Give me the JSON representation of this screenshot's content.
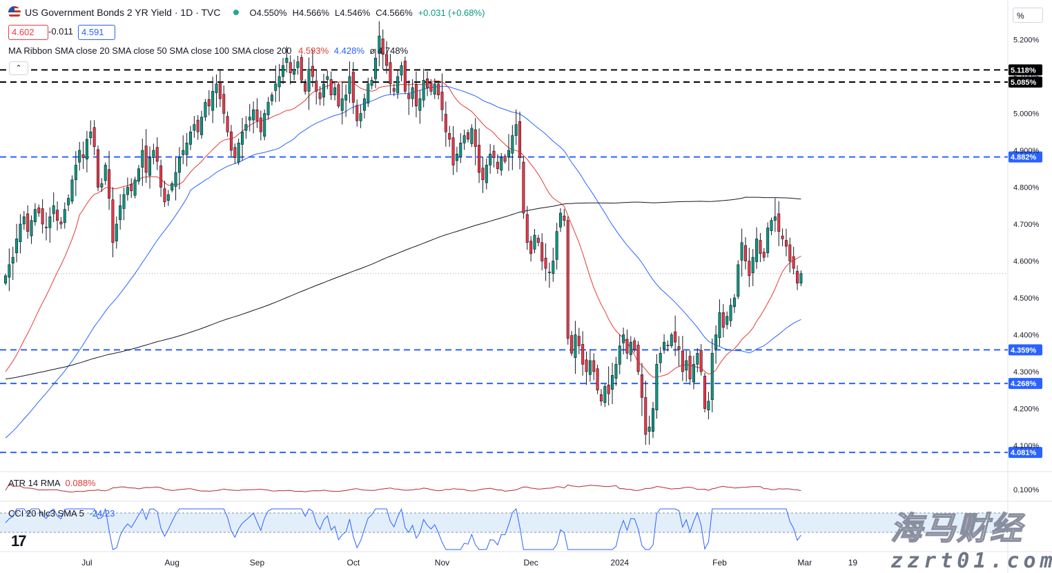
{
  "header": {
    "title": "US Government Bonds 2 YR Yield · 1D · TVC",
    "open": "O4.550%",
    "high": "H4.566%",
    "low": "L4.546%",
    "close": "C4.566%",
    "change": "+0.031 (+0.68%)"
  },
  "price_boxes": {
    "sell": "4.602",
    "spread": "-0.011",
    "buy": "4.591"
  },
  "ma_ribbon": {
    "label": "MA Ribbon SMA close 20 SMA close 50 SMA close 100 SMA close 200",
    "v20": "4.593%",
    "v50": "4.428%",
    "v_last": "ø 4.748%"
  },
  "atr": {
    "label": "ATR 14 RMA",
    "value": "0.088%",
    "axis": "0.100%"
  },
  "cci": {
    "label": "CCI 20 hlc3 SMA 5",
    "value": "-24.23"
  },
  "collapse_glyph": "⌃",
  "tv_logo": "17",
  "scale_unit": "%",
  "watermark": {
    "line1": "海马财经",
    "line2": "zzrt01.com"
  },
  "colors": {
    "up": "#089981",
    "down": "#f23645",
    "sma20": "#e53935",
    "sma50": "#2962ff",
    "sma200": "#131722",
    "level_blue": "#2962ff",
    "level_black": "#000000",
    "cci": "#2962ff"
  },
  "chart_data": {
    "type": "candlestick",
    "y_unit": "%",
    "ylim": [
      4.05,
      5.28
    ],
    "y_ticks": [
      4.1,
      4.2,
      4.3,
      4.4,
      4.5,
      4.6,
      4.7,
      4.8,
      4.9,
      5.0,
      5.1,
      5.2
    ],
    "y_tick_labels": [
      "4.100%",
      "4.200%",
      "4.300%",
      "4.400%",
      "4.500%",
      "4.600%",
      "4.700%",
      "4.800%",
      "4.900%",
      "5.000%",
      "5.100%",
      "5.200%"
    ],
    "x_labels": [
      {
        "label": "Jul",
        "bar": 22
      },
      {
        "label": "Aug",
        "bar": 45
      },
      {
        "label": "Sep",
        "bar": 68
      },
      {
        "label": "Oct",
        "bar": 94
      },
      {
        "label": "Nov",
        "bar": 118
      },
      {
        "label": "Dec",
        "bar": 142
      },
      {
        "label": "2024",
        "bar": 166
      },
      {
        "label": "Feb",
        "bar": 193
      },
      {
        "label": "Mar",
        "bar": 216
      },
      {
        "label": "19",
        "bar": 229
      }
    ],
    "levels": [
      {
        "value": 5.118,
        "label": "5.118%",
        "style": "black"
      },
      {
        "value": 5.085,
        "label": "5.085%",
        "style": "black"
      },
      {
        "value": 4.882,
        "label": "4.882%",
        "style": "blue"
      },
      {
        "value": 4.359,
        "label": "4.359%",
        "style": "blue"
      },
      {
        "value": 4.268,
        "label": "4.268%",
        "style": "blue"
      },
      {
        "value": 4.081,
        "label": "4.081%",
        "style": "blue"
      }
    ],
    "last_price": 4.566,
    "closes": [
      4.56,
      4.59,
      4.61,
      4.66,
      4.7,
      4.72,
      4.68,
      4.71,
      4.74,
      4.73,
      4.7,
      4.69,
      4.72,
      4.75,
      4.71,
      4.7,
      4.74,
      4.77,
      4.82,
      4.86,
      4.9,
      4.88,
      4.93,
      4.95,
      4.91,
      4.8,
      4.81,
      4.86,
      4.77,
      4.65,
      4.7,
      4.75,
      4.78,
      4.8,
      4.79,
      4.82,
      4.85,
      4.9,
      4.84,
      4.88,
      4.9,
      4.87,
      4.8,
      4.76,
      4.78,
      4.81,
      4.84,
      4.88,
      4.9,
      4.92,
      4.95,
      4.97,
      4.95,
      4.99,
      5.03,
      5.02,
      5.06,
      5.08,
      5.04,
      5.0,
      4.95,
      4.9,
      4.88,
      4.92,
      4.95,
      4.97,
      4.99,
      5.01,
      4.98,
      4.95,
      5.0,
      5.03,
      5.05,
      5.08,
      5.1,
      5.13,
      5.15,
      5.11,
      5.12,
      5.14,
      5.09,
      5.06,
      5.12,
      5.1,
      5.06,
      5.04,
      5.08,
      5.1,
      5.05,
      5.07,
      5.02,
      5.04,
      5.05,
      5.1,
      5.03,
      4.98,
      5.0,
      5.04,
      5.08,
      5.09,
      5.15,
      5.21,
      5.16,
      5.13,
      5.08,
      5.06,
      5.1,
      5.13,
      5.06,
      5.04,
      5.07,
      5.02,
      5.04,
      5.09,
      5.07,
      5.06,
      5.08,
      5.05,
      5.01,
      4.95,
      4.93,
      4.86,
      4.89,
      4.92,
      4.94,
      4.93,
      4.96,
      4.91,
      4.84,
      4.82,
      4.86,
      4.89,
      4.88,
      4.85,
      4.88,
      4.87,
      4.9,
      4.94,
      4.97,
      4.88,
      4.73,
      4.65,
      4.62,
      4.67,
      4.65,
      4.6,
      4.58,
      4.57,
      4.6,
      4.68,
      4.73,
      4.71,
      4.39,
      4.35,
      4.4,
      4.37,
      4.32,
      4.3,
      4.33,
      4.3,
      4.25,
      4.22,
      4.26,
      4.24,
      4.29,
      4.32,
      4.37,
      4.4,
      4.35,
      4.38,
      4.36,
      4.3,
      4.23,
      4.13,
      4.15,
      4.2,
      4.32,
      4.35,
      4.38,
      4.37,
      4.4,
      4.38,
      4.36,
      4.3,
      4.33,
      4.28,
      4.32,
      4.35,
      4.3,
      4.2,
      4.22,
      4.35,
      4.4,
      4.46,
      4.42,
      4.45,
      4.48,
      4.5,
      4.59,
      4.65,
      4.6,
      4.56,
      4.61,
      4.66,
      4.62,
      4.61,
      4.69,
      4.71,
      4.72,
      4.68,
      4.66,
      4.64,
      4.6,
      4.58,
      4.54,
      4.566
    ],
    "series": [
      {
        "name": "SMA close 20",
        "value_label": "4.593%"
      },
      {
        "name": "SMA close 50",
        "value_label": "4.428%"
      },
      {
        "name": "SMA close 200",
        "value_label": "4.748%"
      }
    ]
  }
}
